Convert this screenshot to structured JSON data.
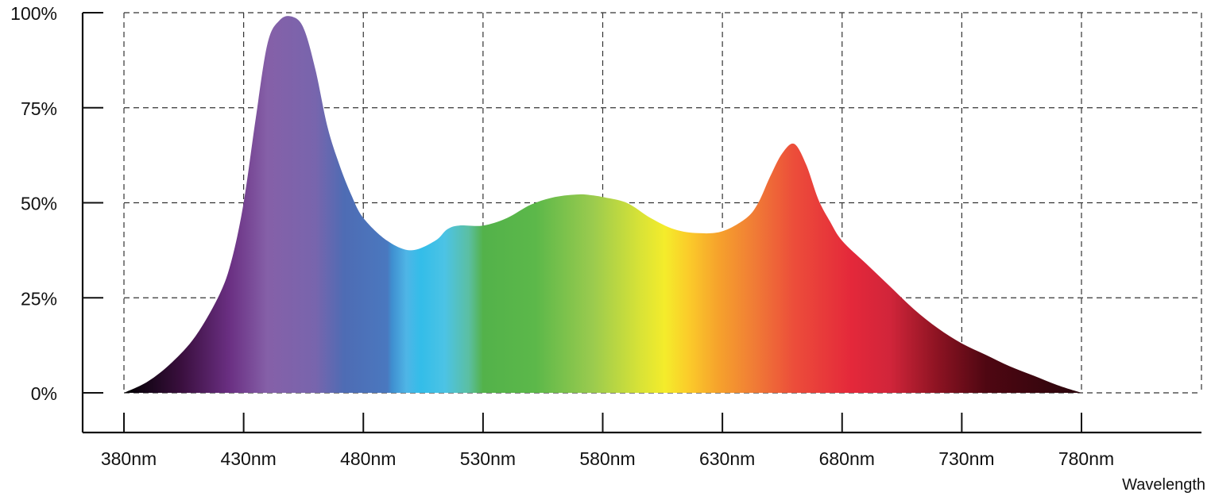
{
  "chart_data": {
    "type": "area",
    "title": "",
    "xlabel": "Wavelength",
    "ylabel": "",
    "x_unit": "nm",
    "xlim": [
      380,
      780
    ],
    "ylim": [
      0,
      100
    ],
    "x_ticks": [
      380,
      430,
      480,
      530,
      580,
      630,
      680,
      730,
      780
    ],
    "x_tick_labels": [
      "380nm",
      "430nm",
      "480nm",
      "530nm",
      "580nm",
      "630nm",
      "680nm",
      "730nm",
      "780nm"
    ],
    "y_ticks": [
      0,
      25,
      50,
      75,
      100
    ],
    "y_tick_labels": [
      "0%",
      "25%",
      "50%",
      "75%",
      "100%"
    ],
    "grid": true,
    "grid_style": "dashed",
    "fill": "visible spectrum gradient",
    "series": [
      {
        "x": [
          380,
          390,
          400,
          410,
          420,
          425,
          430,
          435,
          440,
          445,
          450,
          455,
          460,
          465,
          470,
          475,
          480,
          490,
          500,
          510,
          515,
          520,
          530,
          540,
          550,
          560,
          570,
          575,
          580,
          590,
          600,
          610,
          620,
          630,
          640,
          645,
          650,
          655,
          660,
          665,
          670,
          675,
          680,
          690,
          700,
          710,
          720,
          730,
          740,
          750,
          760,
          770,
          780
        ],
        "y": [
          0,
          3,
          8,
          15,
          26,
          35,
          50,
          72,
          92,
          98,
          99,
          96,
          85,
          70,
          60,
          52,
          46,
          40,
          37.5,
          40,
          43,
          44,
          44,
          46,
          49.5,
          51.5,
          52.2,
          52,
          51.5,
          50,
          46,
          43,
          42,
          42.5,
          46,
          50,
          57,
          63,
          65.5,
          60,
          51,
          45,
          40,
          34,
          28,
          22,
          17,
          13,
          10,
          7,
          4.5,
          2,
          0
        ]
      }
    ]
  }
}
